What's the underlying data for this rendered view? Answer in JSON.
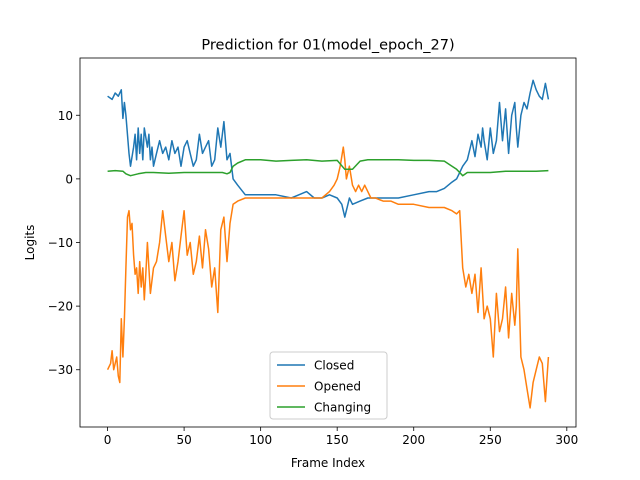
{
  "chart_data": {
    "type": "line",
    "title": "Prediction for 01(model_epoch_27)",
    "xlabel": "Frame Index",
    "ylabel": "Logits",
    "xlim": [
      -18,
      306
    ],
    "ylim": [
      -39,
      19
    ],
    "xticks": [
      0,
      50,
      100,
      150,
      200,
      250,
      300
    ],
    "yticks": [
      10,
      0,
      -10,
      -20,
      -30
    ],
    "grid": false,
    "legend_position": "lower-center",
    "series": [
      {
        "name": "Closed",
        "color": "#1f77b4",
        "x": [
          0,
          3,
          5,
          7,
          9,
          10,
          11,
          12,
          14,
          15,
          17,
          18,
          19,
          20,
          21,
          22,
          23,
          24,
          26,
          27,
          28,
          29,
          30,
          32,
          34,
          36,
          38,
          40,
          42,
          44,
          46,
          48,
          50,
          52,
          54,
          56,
          58,
          60,
          62,
          64,
          66,
          68,
          70,
          72,
          74,
          76,
          78,
          80,
          82,
          85,
          90,
          95,
          100,
          110,
          120,
          125,
          130,
          135,
          140,
          145,
          150,
          153,
          155,
          157,
          158,
          160,
          165,
          170,
          175,
          180,
          185,
          190,
          200,
          210,
          215,
          220,
          225,
          228,
          230,
          232,
          235,
          237,
          238,
          240,
          242,
          244,
          245,
          246,
          248,
          250,
          252,
          254,
          256,
          258,
          260,
          262,
          264,
          266,
          267,
          268,
          270,
          272,
          274,
          276,
          278,
          280,
          282,
          284,
          286,
          288
        ],
        "y": [
          13,
          12.5,
          13.5,
          13,
          14,
          9.5,
          12,
          10,
          4,
          2,
          5,
          7,
          3,
          8,
          4,
          7,
          3,
          8,
          5,
          7,
          3,
          5,
          2,
          4,
          6,
          4,
          5,
          3,
          6,
          4,
          5,
          2,
          5,
          6,
          4,
          2,
          3,
          7,
          4,
          5,
          6,
          2,
          3,
          8,
          5,
          9,
          3,
          4,
          0,
          -1,
          -2.5,
          -2.5,
          -2.5,
          -2.5,
          -3,
          -2.5,
          -2,
          -3,
          -3,
          -2.5,
          -3,
          -4,
          -6,
          -4,
          -3,
          -4,
          -3.5,
          -3,
          -3,
          -3,
          -3,
          -3,
          -2.5,
          -2,
          -2,
          -1.5,
          -0.5,
          0,
          1,
          2,
          3,
          5,
          6,
          3.5,
          7,
          5,
          8,
          6,
          3,
          8,
          4,
          6,
          12,
          6,
          11,
          4,
          10,
          12,
          8,
          5,
          10,
          12,
          11,
          13.5,
          15.5,
          14,
          13,
          12.5,
          15,
          12.5
        ]
      },
      {
        "name": "Opened",
        "color": "#ff7f0e",
        "x": [
          0,
          2,
          3,
          4,
          5,
          6,
          7,
          8,
          9,
          10,
          11,
          12,
          13,
          14,
          15,
          16,
          17,
          18,
          19,
          20,
          21,
          22,
          23,
          24,
          25,
          26,
          28,
          30,
          32,
          34,
          36,
          38,
          40,
          42,
          44,
          46,
          48,
          50,
          52,
          54,
          56,
          58,
          60,
          62,
          64,
          66,
          68,
          70,
          72,
          74,
          76,
          78,
          80,
          82,
          85,
          90,
          95,
          100,
          110,
          120,
          130,
          140,
          145,
          148,
          150,
          152,
          154,
          155,
          156,
          158,
          160,
          162,
          164,
          166,
          168,
          170,
          172,
          175,
          180,
          185,
          190,
          200,
          210,
          220,
          225,
          228,
          230,
          232,
          234,
          236,
          238,
          240,
          242,
          244,
          246,
          248,
          250,
          252,
          254,
          256,
          258,
          260,
          262,
          264,
          266,
          267,
          268,
          270,
          272,
          274,
          276,
          278,
          280,
          282,
          284,
          286,
          288
        ],
        "y": [
          -30,
          -29,
          -27,
          -30,
          -29,
          -28,
          -31,
          -32,
          -22,
          -28,
          -22,
          -14,
          -6,
          -5,
          -8,
          -7,
          -12,
          -15,
          -14,
          -18,
          -13,
          -17,
          -14,
          -19,
          -15,
          -10,
          -18,
          -14,
          -13,
          -10,
          -5,
          -9,
          -13,
          -10,
          -16,
          -13,
          -9,
          -5,
          -12,
          -10,
          -15,
          -13,
          -9,
          -14,
          -8,
          -11,
          -17,
          -14,
          -21,
          -8,
          -6,
          -13,
          -7,
          -4,
          -3.5,
          -3,
          -3,
          -3,
          -3,
          -3,
          -3,
          -3,
          -2,
          -1,
          0,
          2,
          5,
          3,
          0,
          2,
          -1,
          -2,
          -1,
          -2,
          -1,
          -2,
          -3,
          -3,
          -3.5,
          -3.5,
          -4,
          -4,
          -4.5,
          -4.5,
          -5,
          -5.5,
          -5,
          -14,
          -17,
          -15,
          -18,
          -15,
          -21,
          -14,
          -22,
          -20,
          -22,
          -28,
          -18,
          -24,
          -22,
          -17,
          -25,
          -18,
          -23,
          -20,
          -11,
          -28,
          -30,
          -33,
          -36,
          -32,
          -30,
          -28,
          -29,
          -35,
          -28
        ]
      },
      {
        "name": "Changing",
        "color": "#2ca02c",
        "x": [
          0,
          5,
          10,
          12,
          15,
          20,
          25,
          30,
          40,
          50,
          60,
          70,
          75,
          78,
          80,
          82,
          85,
          90,
          100,
          110,
          120,
          130,
          140,
          150,
          155,
          160,
          165,
          170,
          180,
          190,
          200,
          210,
          220,
          225,
          228,
          230,
          232,
          235,
          240,
          250,
          260,
          270,
          280,
          288
        ],
        "y": [
          1.2,
          1.3,
          1.2,
          0.8,
          0.5,
          0.8,
          1,
          1,
          0.9,
          1,
          1,
          1,
          1,
          0.8,
          1,
          2,
          2.5,
          3,
          3,
          2.8,
          2.9,
          3,
          2.8,
          2.9,
          1.5,
          1.5,
          2.8,
          3,
          3,
          3,
          2.9,
          2.9,
          2.8,
          2,
          1.5,
          1,
          0.5,
          1,
          1,
          1,
          1.2,
          1.2,
          1.2,
          1.3
        ]
      }
    ]
  }
}
